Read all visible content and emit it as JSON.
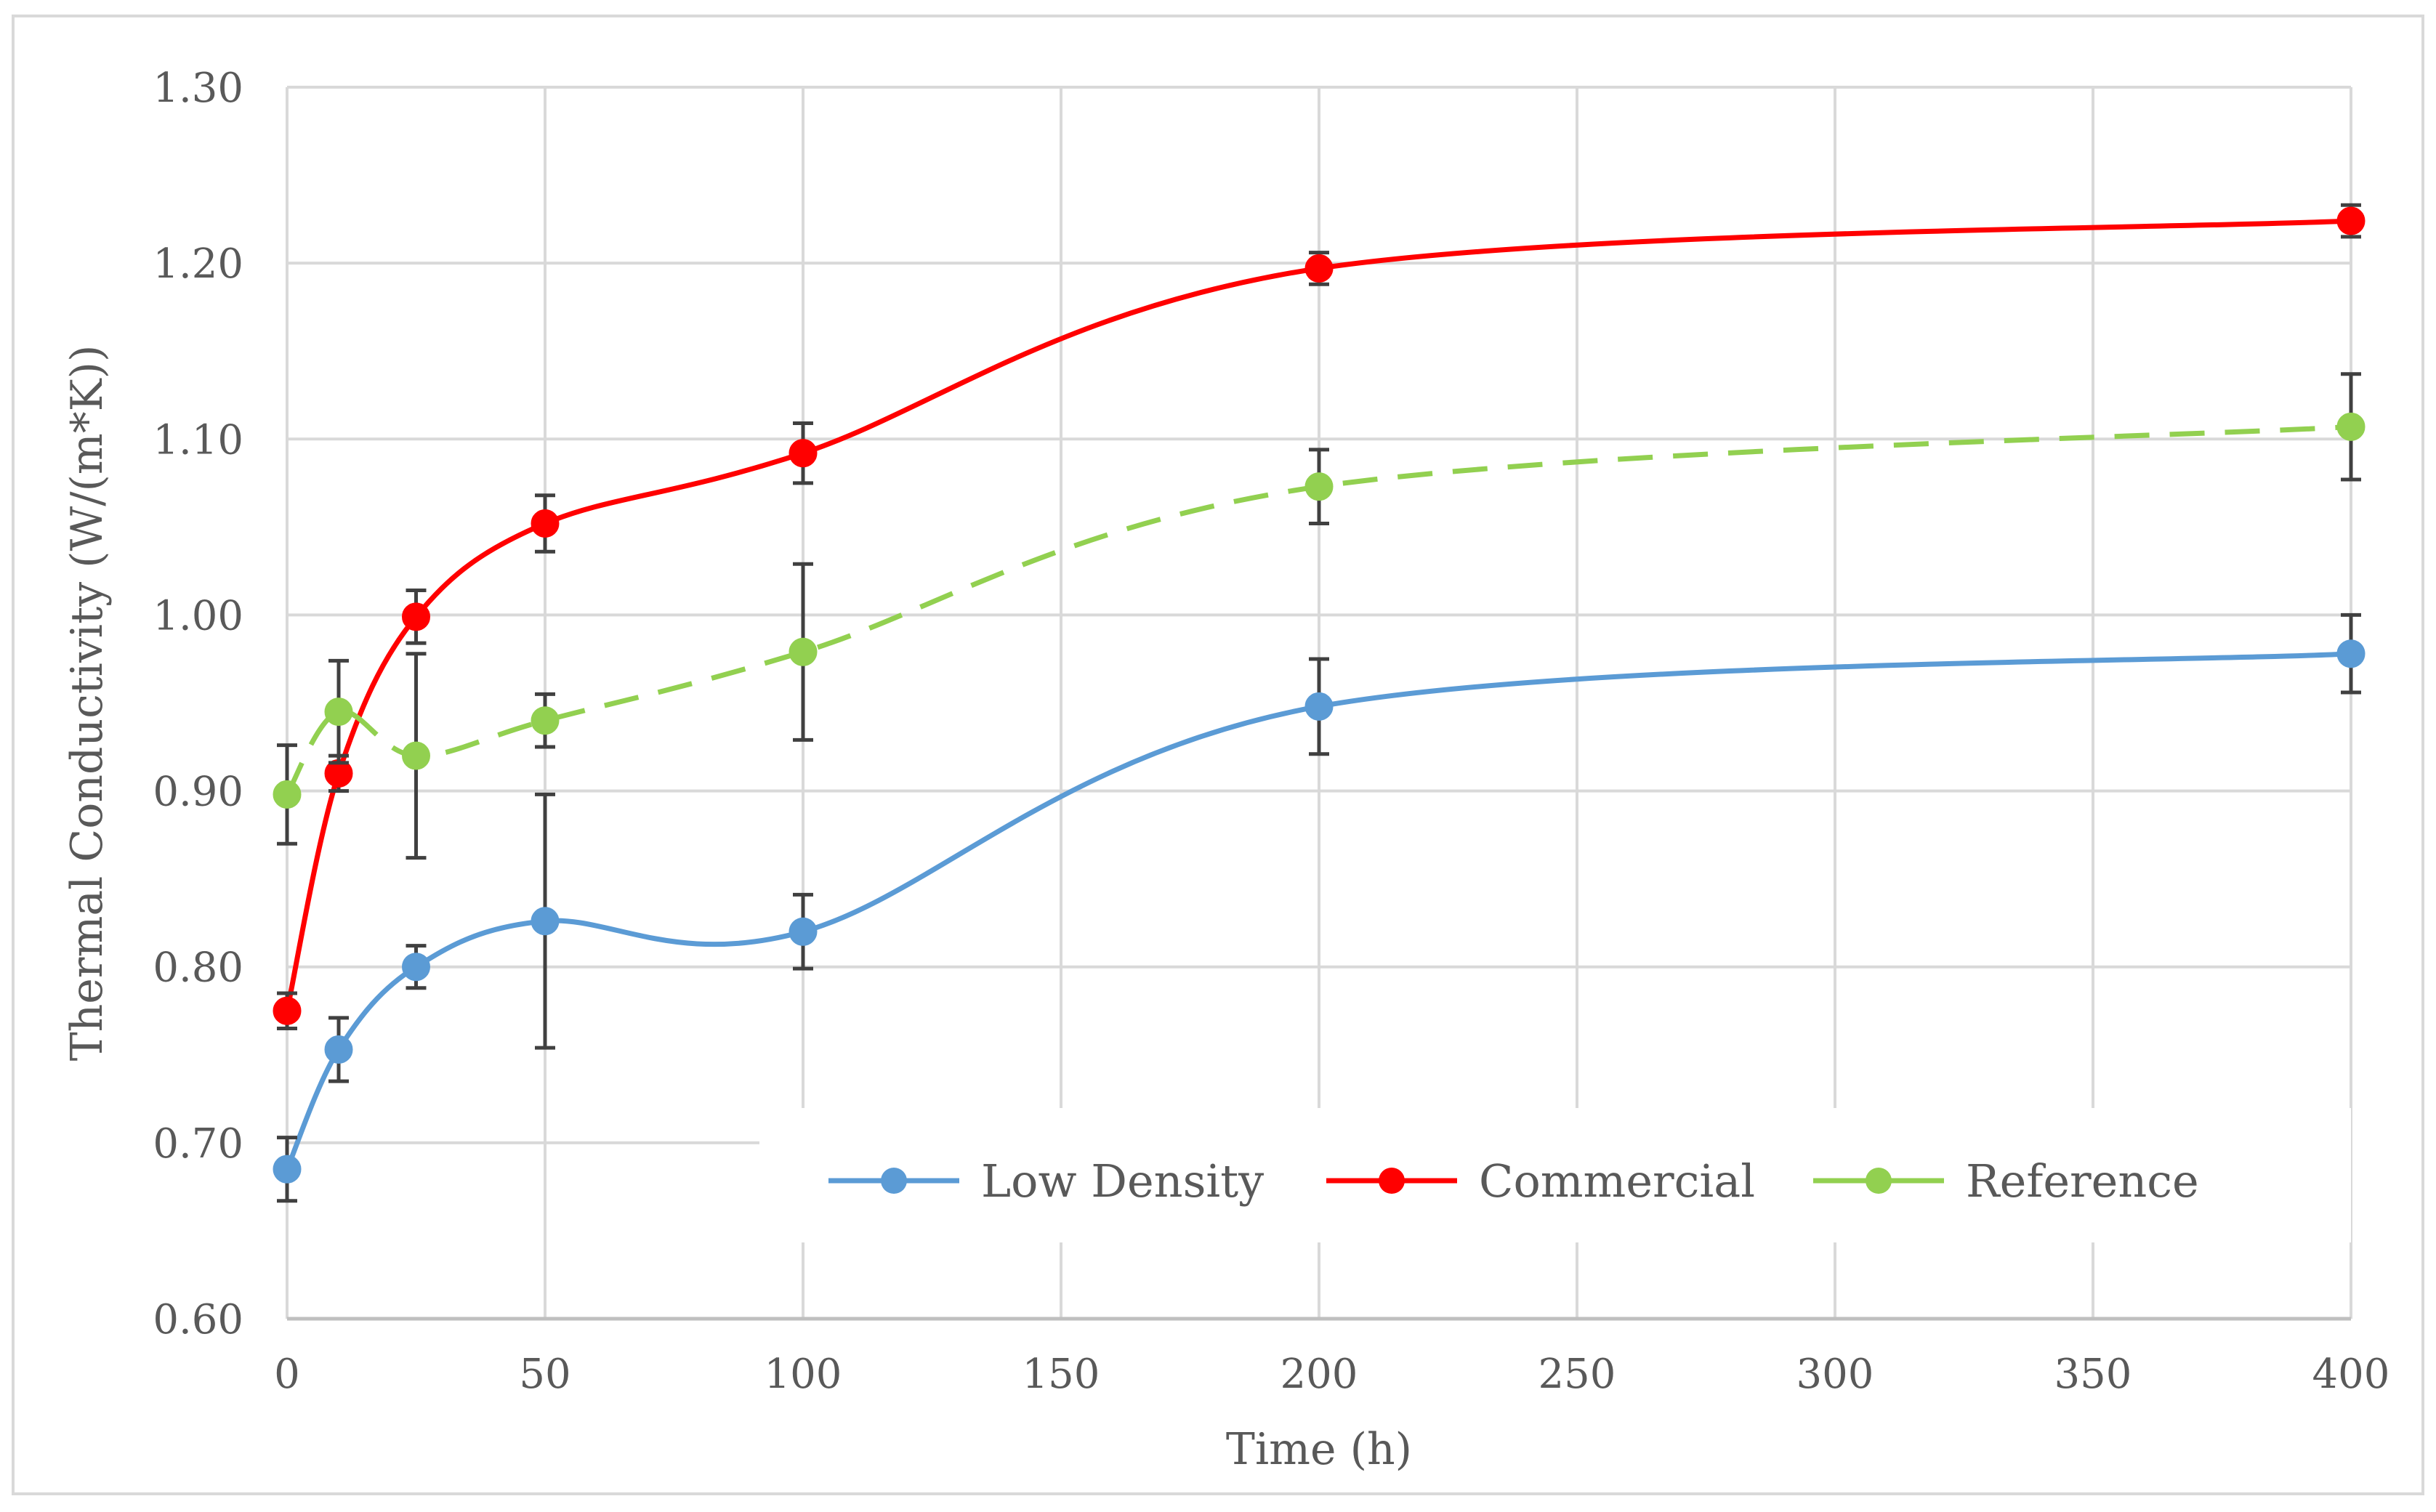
{
  "chart_data": {
    "type": "line",
    "title": "",
    "xlabel": "Time (h)",
    "ylabel": "Thermal Conductivity  (W/(m*K))",
    "xlim": [
      0,
      400
    ],
    "ylim": [
      0.6,
      1.3
    ],
    "x_ticks": [
      0,
      50,
      100,
      150,
      200,
      250,
      300,
      350,
      400
    ],
    "y_ticks": [
      0.6,
      0.7,
      0.8,
      0.9,
      1.0,
      1.1,
      1.2,
      1.3
    ],
    "grid": true,
    "legend_position": "bottom-right",
    "x": [
      0,
      10,
      25,
      50,
      100,
      200,
      400
    ],
    "series": [
      {
        "name": "Low Density",
        "color": "#5b9bd5",
        "dashed": false,
        "values": [
          0.685,
          0.753,
          0.8,
          0.826,
          0.82,
          0.948,
          0.978
        ],
        "errors": [
          0.018,
          0.018,
          0.012,
          0.072,
          0.021,
          0.027,
          0.022
        ]
      },
      {
        "name": "Commercial",
        "color": "#ff0000",
        "dashed": false,
        "values": [
          0.775,
          0.91,
          0.999,
          1.052,
          1.092,
          1.197,
          1.224
        ],
        "errors": [
          0.01,
          0.01,
          0.015,
          0.016,
          0.017,
          0.009,
          0.009
        ]
      },
      {
        "name": "Reference",
        "color": "#92d050",
        "dashed": true,
        "values": [
          0.898,
          0.945,
          0.92,
          0.94,
          0.979,
          1.073,
          1.107
        ],
        "errors": [
          0.028,
          0.029,
          0.058,
          0.015,
          0.05,
          0.021,
          0.03
        ]
      }
    ]
  }
}
